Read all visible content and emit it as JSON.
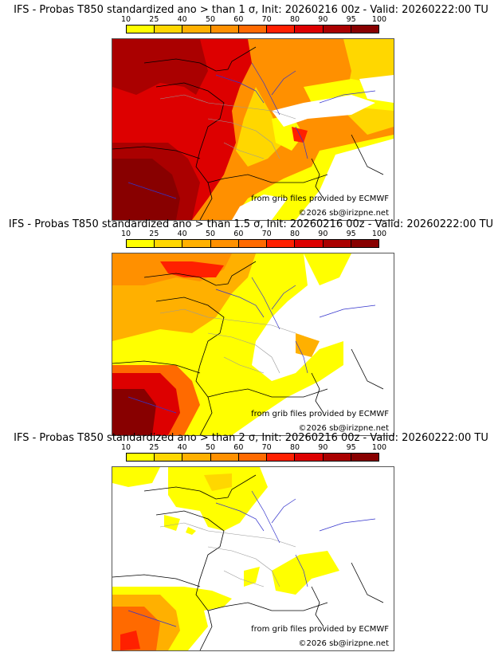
{
  "colorbar": {
    "ticks": [
      "10",
      "25",
      "40",
      "50",
      "60",
      "70",
      "80",
      "90",
      "95",
      "100"
    ],
    "colors": [
      "#ffff00",
      "#ffd700",
      "#ffb000",
      "#ff9000",
      "#ff6a00",
      "#ff2000",
      "#dd0000",
      "#aa0000",
      "#880000"
    ]
  },
  "panels": [
    {
      "title": "IFS - Probas T850  standardized ano > than 1 σ, Init: 20260216 00z - Valid: 20260222:00 TU",
      "source_note": "from grib files provided by ECMWF",
      "copyright": "©2026 sb@irizpne.net"
    },
    {
      "title": "IFS - Probas T850  standardized ano > than 1.5 σ, Init: 20260216 00z - Valid: 20260222:00 TU",
      "source_note": "from grib files provided by ECMWF",
      "copyright": "©2026 sb@irizpne.net"
    },
    {
      "title": "IFS - Probas T850  standardized ano > than 2 σ, Init: 20260216 00z - Valid: 20260222:00 TU",
      "source_note": "from grib files provided by ECMWF",
      "copyright": "©2026 sb@irizpne.net"
    }
  ]
}
